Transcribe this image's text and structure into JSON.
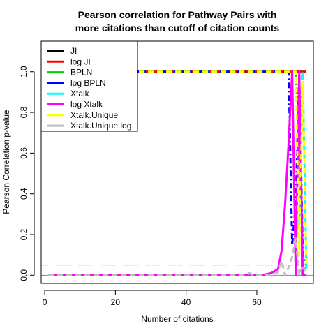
{
  "chart_data": {
    "type": "line",
    "title_line1": "Pearson correlation for Pathway Pairs with",
    "title_line2": "more citations than cutoff of citation counts",
    "xlabel": "Number of citations",
    "ylabel": "Pearson Correlation p-value",
    "xlim": [
      -1,
      76
    ],
    "ylim": [
      -0.04,
      1.15
    ],
    "xticks": [
      0,
      20,
      40,
      60
    ],
    "yticks": [
      0.0,
      0.2,
      0.4,
      0.6,
      0.8,
      1.0
    ],
    "xtick_labels": [
      "0",
      "20",
      "40",
      "60"
    ],
    "ytick_labels": [
      "0.0",
      "0.2",
      "0.4",
      "0.6",
      "0.8",
      "1.0"
    ],
    "reference_line": 0.05,
    "zero_line": 0,
    "legend_position": "top-left",
    "series": [
      {
        "name": "JI",
        "color": "#000000",
        "dash": "solid",
        "x": [
          1,
          69,
          70,
          71,
          72,
          73,
          74
        ],
        "y": [
          1.0,
          1.0,
          1.0,
          1.0,
          1.0,
          1.0,
          1.0
        ]
      },
      {
        "name": "log JI",
        "color": "#ff0000",
        "dash": "solid",
        "x": [
          1,
          69,
          70,
          71,
          72,
          73,
          74
        ],
        "y": [
          1.0,
          1.0,
          1.0,
          1.0,
          1.0,
          1.0,
          1.0
        ]
      },
      {
        "name": "BPLN",
        "color": "#00cd00",
        "dash": "dotted",
        "x": [
          1,
          70,
          71,
          72,
          73,
          74
        ],
        "y": [
          1.0,
          1.0,
          1.0,
          0.62,
          0.06,
          0.02
        ]
      },
      {
        "name": "log BPLN",
        "color": "#0000ff",
        "dash": "dashdot",
        "x": [
          1,
          69,
          70,
          71,
          72,
          73,
          74
        ],
        "y": [
          1.0,
          1.0,
          0.15,
          0.35,
          1.0,
          0.1,
          0.05
        ]
      },
      {
        "name": "Xtalk",
        "color": "#00ffff",
        "dash": "dashed",
        "x": [
          1,
          71,
          72,
          73,
          74
        ],
        "y": [
          1.0,
          1.0,
          0.25,
          1.0,
          0.03
        ]
      },
      {
        "name": "log Xtalk",
        "color": "#ff00ff",
        "dash": "solid",
        "x": [
          1,
          10,
          20,
          28,
          30,
          40,
          50,
          56,
          60,
          62,
          64,
          66,
          67,
          68,
          69,
          70,
          71,
          72,
          73,
          74
        ],
        "y": [
          0.0,
          0.0,
          0.0,
          0.003,
          0.0,
          0.0,
          0.0,
          0.0,
          0.0,
          0.003,
          0.01,
          0.03,
          0.12,
          0.35,
          0.65,
          1.0,
          0.0,
          1.0,
          0.0,
          0.0
        ]
      },
      {
        "name": "Xtalk.Unique",
        "color": "#ffff00",
        "dash": "dashed",
        "x": [
          1,
          71,
          72,
          73,
          74
        ],
        "y": [
          1.0,
          1.0,
          0.1,
          0.95,
          0.05
        ]
      },
      {
        "name": "Xtalk.Unique.log",
        "color": "#bebebe",
        "dash": "dashed",
        "x": [
          1,
          10,
          20,
          30,
          40,
          50,
          56,
          58,
          59,
          62,
          64,
          66,
          67,
          68,
          69,
          70,
          71,
          72,
          73,
          74
        ],
        "y": [
          0.0,
          0.0,
          0.0,
          0.0,
          0.0,
          0.0,
          0.003,
          0.01,
          0.0,
          0.0,
          0.003,
          0.015,
          0.07,
          0.0,
          0.04,
          0.09,
          0.18,
          0.0,
          0.05,
          0.0
        ]
      }
    ]
  }
}
